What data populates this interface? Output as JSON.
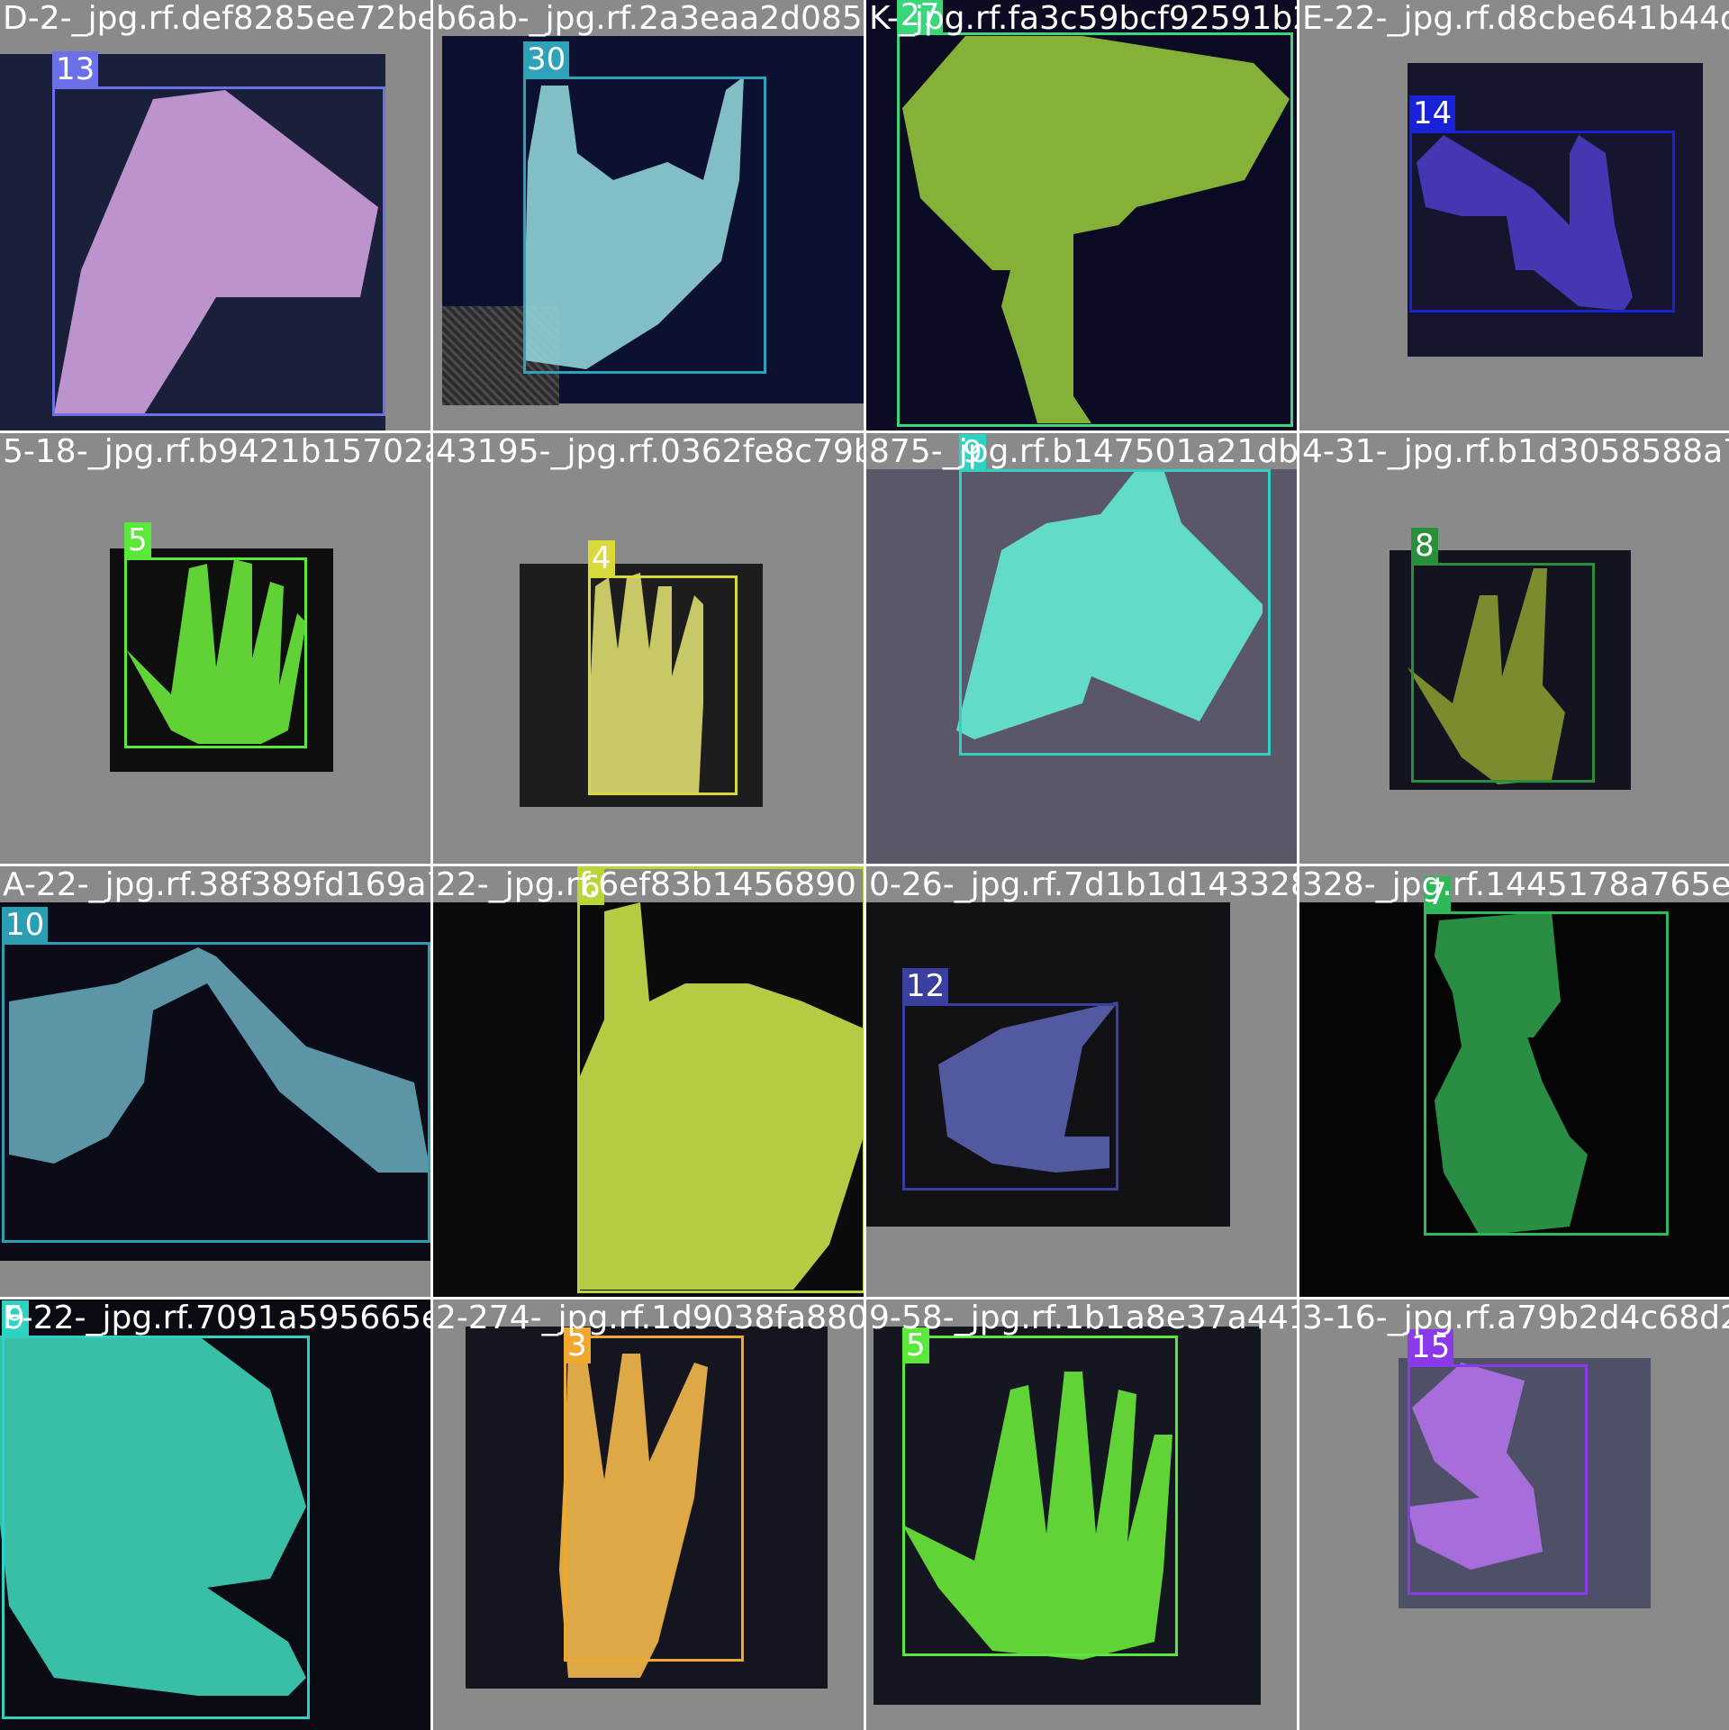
{
  "tiles": [
    {
      "filename": "D-2-_jpg.rf.def8285ee72be1bc610-b8d8f2439",
      "class_label": "13",
      "color": "#6c70e8",
      "mask_color": "#d9a8e6"
    },
    {
      "filename": "b6ab-_jpg.rf.2a3eaa2d085304",
      "class_label": "30",
      "color": "#2ea2b8",
      "mask_color": "#8fd1d6"
    },
    {
      "filename": "K-_jpg.rf.fa3c59bcf92591b23bcd478",
      "class_label": "27",
      "color": "#3bd67a",
      "mask_color": "#9ccf3c"
    },
    {
      "filename": "E-22-_jpg.rf.d8cbe641b44d4",
      "class_label": "14",
      "color": "#1a22d8",
      "mask_color": "#4a3ac0"
    },
    {
      "filename": "5-18-_jpg.rf.b9421b15702a54",
      "class_label": "5",
      "color": "#5ae83a",
      "mask_color": "#6ae83a"
    },
    {
      "filename": "43195-_jpg.rf.0362fe8c79b39d",
      "class_label": "4",
      "color": "#d9d93a",
      "mask_color": "#e6e673"
    },
    {
      "filename": "875-_jpg.rf.b147501a21db",
      "class_label": "9",
      "color": "#2fd1c3",
      "mask_color": "#63ead2"
    },
    {
      "filename": "4-31-_jpg.rf.b1d3058588a7da",
      "class_label": "8",
      "color": "#2a8f3a",
      "mask_color": "#8ba232"
    },
    {
      "filename": "A-22-_jpg.rf.38f389fd169a762250",
      "class_label": "10",
      "color": "#2a9eb2",
      "mask_color": "#6aaec0"
    },
    {
      "filename": "22-_jpg.rf.6ef83b1456890",
      "class_label": "6",
      "color": "#b8d63a",
      "mask_color": "#c8e04a"
    },
    {
      "filename": "0-26-_jpg.rf.7d1b1d143328",
      "class_label": "12",
      "color": "#3b3fa0",
      "mask_color": "#5b62b0"
    },
    {
      "filename": "328-_jpg.rf.1445178a765e3c",
      "class_label": "7",
      "color": "#2eb85a",
      "mask_color": "#2e9d4a"
    },
    {
      "filename": "F-22-_jpg.rf.7091a595665e123",
      "class_label": "9",
      "color": "#2fd1c3",
      "mask_color": "#3ed1b8"
    },
    {
      "filename": "2-274-_jpg.rf.1d9038fa880ac45",
      "class_label": "3",
      "color": "#f0a830",
      "mask_color": "#f4b84a"
    },
    {
      "filename": "9-58-_jpg.rf.1b1a8e37a441f3d6a",
      "class_label": "5",
      "color": "#5ae83a",
      "mask_color": "#6ae83a"
    },
    {
      "filename": "3-16-_jpg.rf.a79b2d4c68d296",
      "class_label": "15",
      "color": "#8a3ae8",
      "mask_color": "#b070e8"
    }
  ]
}
